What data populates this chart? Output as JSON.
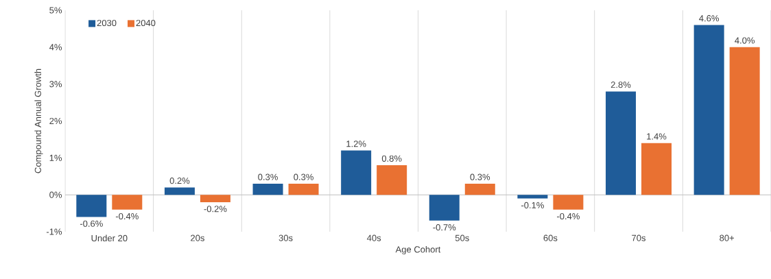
{
  "chart_data": {
    "type": "bar",
    "xlabel": "Age Cohort",
    "ylabel": "Compound Annual Growth",
    "categories": [
      "Under 20",
      "20s",
      "30s",
      "40s",
      "50s",
      "60s",
      "70s",
      "80+"
    ],
    "series": [
      {
        "name": "2030",
        "color": "#1f5c99",
        "values": [
          -0.6,
          0.2,
          0.3,
          1.2,
          -0.7,
          -0.1,
          2.8,
          4.6
        ],
        "value_labels": [
          "-0.6%",
          "0.2%",
          "0.3%",
          "1.2%",
          "-0.7%",
          "-0.1%",
          "2.8%",
          "4.6%"
        ]
      },
      {
        "name": "2040",
        "color": "#e97132",
        "values": [
          -0.4,
          -0.2,
          0.3,
          0.8,
          0.3,
          -0.4,
          1.4,
          4.0
        ],
        "value_labels": [
          "-0.4%",
          "-0.2%",
          "0.3%",
          "0.8%",
          "0.3%",
          "-0.4%",
          "1.4%",
          "4.0%"
        ]
      }
    ],
    "ylim": [
      -1,
      5
    ],
    "yticks": [
      {
        "value": -1,
        "label": "-1%"
      },
      {
        "value": 0,
        "label": "0%"
      },
      {
        "value": 1,
        "label": "1%"
      },
      {
        "value": 2,
        "label": "2%"
      },
      {
        "value": 3,
        "label": "3%"
      },
      {
        "value": 4,
        "label": "4%"
      },
      {
        "value": 5,
        "label": "5%"
      }
    ],
    "grid": "x",
    "legend": "top left"
  }
}
